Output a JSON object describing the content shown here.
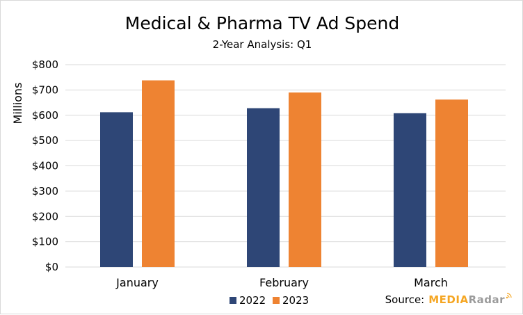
{
  "chart_data": {
    "type": "bar",
    "title": "Medical & Pharma TV Ad Spend",
    "subtitle": "2-Year Analysis: Q1",
    "ylabel": "Millions",
    "xlabel": "",
    "categories": [
      "January",
      "February",
      "March"
    ],
    "series": [
      {
        "name": "2022",
        "color": "#2e4676",
        "values": [
          612,
          628,
          608
        ]
      },
      {
        "name": "2023",
        "color": "#ee8332",
        "values": [
          738,
          690,
          662
        ]
      }
    ],
    "ylim": [
      0,
      800
    ],
    "yticks": [
      0,
      100,
      200,
      300,
      400,
      500,
      600,
      700,
      800
    ],
    "ytick_labels": [
      "$0",
      "$100",
      "$200",
      "$300",
      "$400",
      "$500",
      "$600",
      "$700",
      "$800"
    ],
    "grid": true,
    "legend_position": "bottom"
  },
  "source": {
    "label": "Source:",
    "brand_part1": "MEDIA",
    "brand_part2": "Radar"
  }
}
